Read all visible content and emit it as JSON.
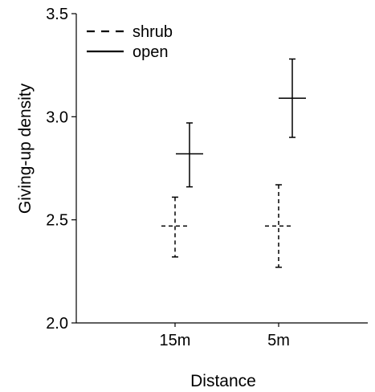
{
  "chart_data": {
    "type": "errorbar",
    "xlabel": "Distance",
    "ylabel": "Giving-up density",
    "categories": [
      "15m",
      "5m"
    ],
    "ylim": [
      2.0,
      3.5
    ],
    "yticks": [
      "2.0",
      "2.5",
      "3.0",
      "3.5"
    ],
    "legend_position": "top-left",
    "series": [
      {
        "name": "shrub",
        "line_style": "dashed",
        "color": "#000000",
        "values": [
          2.47,
          2.47
        ],
        "lower": [
          2.32,
          2.27
        ],
        "upper": [
          2.61,
          2.67
        ]
      },
      {
        "name": "open",
        "line_style": "solid",
        "color": "#000000",
        "values": [
          2.82,
          3.09
        ],
        "lower": [
          2.66,
          2.9
        ],
        "upper": [
          2.97,
          3.28
        ]
      }
    ]
  }
}
